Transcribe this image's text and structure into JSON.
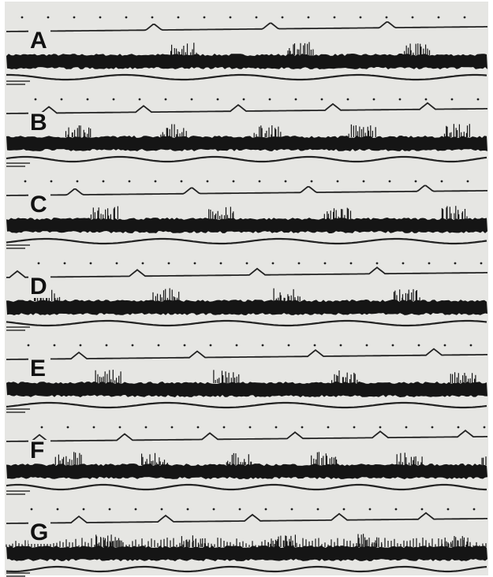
{
  "panels": [
    {
      "label": "A"
    },
    {
      "label": "B"
    },
    {
      "label": "C"
    },
    {
      "label": "D"
    },
    {
      "label": "E"
    },
    {
      "label": "F"
    },
    {
      "label": "G"
    }
  ]
}
